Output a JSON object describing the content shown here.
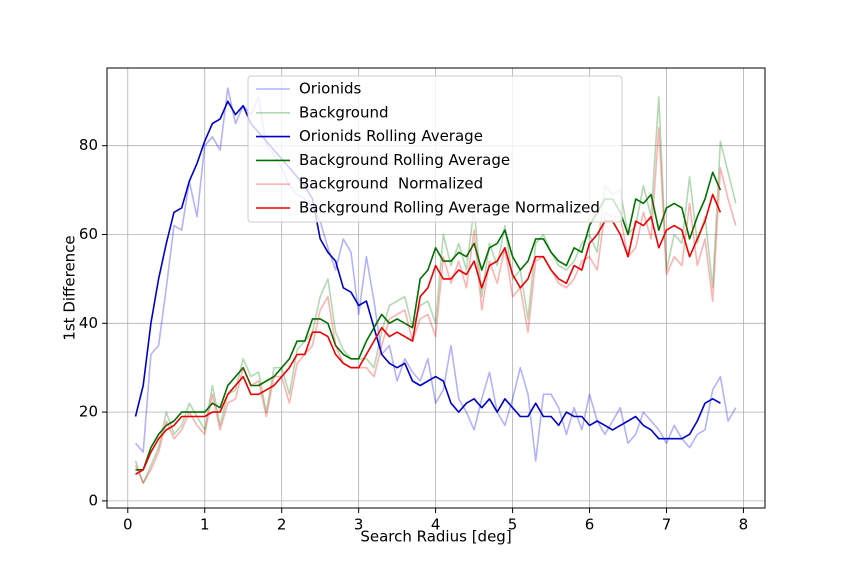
{
  "chart_data": {
    "type": "line",
    "x_label": "Search Radius [deg]",
    "y_label": "1st Difference",
    "x": [
      0.1,
      0.2,
      0.3,
      0.4,
      0.5,
      0.6,
      0.7,
      0.8,
      0.9,
      1.0,
      1.1,
      1.2,
      1.3,
      1.4,
      1.5,
      1.6,
      1.7,
      1.8,
      1.9,
      2.0,
      2.1,
      2.2,
      2.3,
      2.4,
      2.5,
      2.6,
      2.7,
      2.8,
      2.9,
      3.0,
      3.1,
      3.2,
      3.3,
      3.4,
      3.5,
      3.6,
      3.7,
      3.8,
      3.9,
      4.0,
      4.1,
      4.2,
      4.3,
      4.4,
      4.5,
      4.6,
      4.7,
      4.8,
      4.9,
      5.0,
      5.1,
      5.2,
      5.3,
      5.4,
      5.5,
      5.6,
      5.7,
      5.8,
      5.9,
      6.0,
      6.1,
      6.2,
      6.3,
      6.4,
      6.5,
      6.6,
      6.7,
      6.8,
      6.9,
      7.0,
      7.1,
      7.2,
      7.3,
      7.4,
      7.5,
      7.6,
      7.7,
      7.8,
      7.9
    ],
    "series": [
      {
        "name": "Orionids",
        "color": "#0000ff",
        "opacity": 0.3,
        "values": [
          13,
          11,
          33,
          35,
          48,
          62,
          61,
          72,
          64,
          80,
          82,
          79,
          93,
          85,
          89,
          87,
          91,
          80,
          78,
          75,
          71,
          69,
          68,
          66,
          63,
          57,
          52,
          59,
          56,
          42,
          55,
          45,
          33,
          35,
          27,
          32,
          29,
          27,
          32,
          22,
          25,
          35,
          23,
          20,
          16,
          23,
          29,
          20,
          17,
          23,
          30,
          24,
          9,
          24,
          24,
          21,
          15,
          21,
          16,
          24,
          18,
          15,
          18,
          21,
          13,
          15,
          20,
          18,
          16,
          13,
          17,
          14,
          12,
          15,
          16,
          25,
          28,
          18,
          21
        ]
      },
      {
        "name": "Background",
        "color": "#008000",
        "opacity": 0.3,
        "values": [
          9,
          4,
          8,
          12,
          20,
          15,
          17,
          22,
          19,
          16,
          26,
          17,
          24,
          25,
          32,
          28,
          29,
          20,
          30,
          30,
          24,
          34,
          36,
          38,
          46,
          50,
          38,
          34,
          32,
          32,
          32,
          30,
          38,
          44,
          45,
          46,
          39,
          44,
          45,
          40,
          60,
          53,
          58,
          52,
          66,
          46,
          58,
          53,
          62,
          50,
          52,
          41,
          58,
          60,
          56,
          53,
          52,
          54,
          58,
          60,
          56,
          71,
          69,
          70,
          60,
          62,
          71,
          64,
          91,
          52,
          60,
          58,
          73,
          58,
          64,
          48,
          81,
          74,
          67
        ]
      },
      {
        "name": "Orionids Rolling Average",
        "color": "#0000cc",
        "opacity": 1,
        "values": [
          19,
          26,
          40,
          50,
          58,
          65,
          66,
          72,
          76,
          81,
          85,
          86,
          90,
          87,
          89,
          85,
          83,
          81,
          79,
          77,
          75,
          73,
          71,
          68,
          59,
          56,
          54,
          48,
          47,
          44,
          45,
          39,
          33,
          31,
          30,
          31,
          27,
          26,
          27,
          28,
          27,
          22,
          20,
          22,
          23,
          21,
          23,
          20,
          23,
          21,
          19,
          19,
          22,
          19,
          19,
          17,
          20,
          19,
          19,
          17,
          18,
          17,
          16,
          17,
          18,
          19,
          17,
          16,
          14,
          14,
          14,
          14,
          15,
          18,
          22,
          23,
          22,
          null,
          null
        ]
      },
      {
        "name": "Background Rolling Average",
        "color": "#007000",
        "opacity": 1,
        "values": [
          7,
          7,
          12,
          15,
          17,
          18,
          20,
          20,
          20,
          20,
          22,
          21,
          26,
          28,
          30,
          26,
          26,
          27,
          28,
          30,
          32,
          36,
          36,
          41,
          41,
          40,
          35,
          33,
          32,
          32,
          36,
          39,
          42,
          40,
          41,
          40,
          39,
          50,
          52,
          57,
          54,
          54,
          56,
          55,
          58,
          52,
          57,
          58,
          61,
          55,
          52,
          54,
          59,
          59,
          56,
          54,
          53,
          57,
          56,
          62,
          65,
          68,
          68,
          65,
          60,
          68,
          67,
          69,
          61,
          66,
          67,
          66,
          59,
          64,
          68,
          74,
          70,
          null,
          null
        ]
      },
      {
        "name": "Background  Normalized",
        "color": "#ff0000",
        "opacity": 0.3,
        "values": [
          8,
          4,
          7,
          11,
          18,
          14,
          16,
          20,
          17,
          15,
          24,
          16,
          22,
          23,
          30,
          26,
          27,
          19,
          28,
          28,
          22,
          31,
          33,
          35,
          43,
          46,
          35,
          31,
          30,
          30,
          30,
          28,
          35,
          41,
          42,
          43,
          36,
          41,
          42,
          37,
          55,
          49,
          54,
          48,
          61,
          43,
          54,
          49,
          57,
          46,
          48,
          38,
          54,
          55,
          52,
          49,
          48,
          50,
          54,
          55,
          52,
          65,
          64,
          64,
          55,
          57,
          65,
          59,
          84,
          51,
          55,
          53,
          67,
          53,
          59,
          45,
          75,
          68,
          62
        ]
      },
      {
        "name": "Background Rolling Average Normalized",
        "color": "#ee0000",
        "opacity": 1,
        "values": [
          6,
          7,
          11,
          14,
          16,
          17,
          19,
          19,
          19,
          19,
          20,
          20,
          24,
          26,
          28,
          24,
          24,
          25,
          26,
          28,
          30,
          33,
          33,
          38,
          38,
          37,
          33,
          31,
          30,
          30,
          33,
          36,
          39,
          37,
          38,
          37,
          36,
          46,
          48,
          53,
          50,
          50,
          52,
          51,
          54,
          48,
          53,
          54,
          57,
          51,
          48,
          50,
          55,
          55,
          52,
          50,
          49,
          53,
          52,
          58,
          60,
          63,
          63,
          60,
          55,
          63,
          62,
          64,
          57,
          61,
          62,
          61,
          55,
          59,
          63,
          69,
          65,
          null,
          null
        ]
      }
    ],
    "xlim": [
      -0.27,
      8.28
    ],
    "ylim": [
      -1.6,
      97.5
    ],
    "xticks": [
      0,
      1,
      2,
      3,
      4,
      5,
      6,
      7,
      8
    ],
    "yticks": [
      0,
      20,
      40,
      60,
      80
    ],
    "grid": true,
    "legend": "upper center"
  }
}
